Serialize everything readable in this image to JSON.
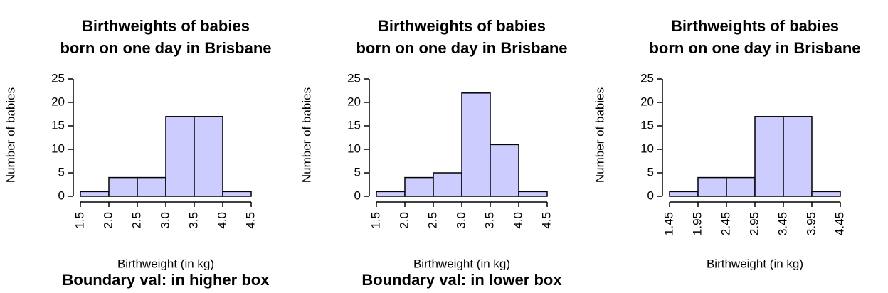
{
  "chart_data": [
    {
      "type": "histogram",
      "title": [
        "Birthweights of babies",
        "born on one day in Brisbane"
      ],
      "xlabel": "Birthweight (in kg)",
      "ylabel": "Number of babies",
      "caption": "Boundary val: in higher box",
      "bins": [
        1.5,
        2.0,
        2.5,
        3.0,
        3.5,
        4.0,
        4.5
      ],
      "values": [
        1,
        4,
        4,
        17,
        17,
        1
      ],
      "color": "#ccccff",
      "xlim": [
        1.5,
        4.5
      ],
      "xticks": [
        1.5,
        {
          "value": 2,
          "label": "2.0"
        },
        2.5,
        {
          "value": 3,
          "label": "3.0"
        },
        3.5,
        {
          "value": 4,
          "label": "4.0"
        },
        4.5
      ],
      "ylim": [
        0,
        25
      ],
      "yticks": [
        0,
        5,
        10,
        15,
        20,
        25
      ]
    },
    {
      "type": "histogram",
      "title": [
        "Birthweights of babies",
        "born on one day in Brisbane"
      ],
      "xlabel": "Birthweight (in kg)",
      "ylabel": "Number of babies",
      "caption": "Boundary val: in lower box",
      "bins": [
        1.5,
        2.0,
        2.5,
        3.0,
        3.5,
        4.0,
        4.5
      ],
      "values": [
        1,
        4,
        5,
        22,
        11,
        1
      ],
      "color": "#ccccff",
      "xlim": [
        1.5,
        4.5
      ],
      "xticks": [
        1.5,
        {
          "value": 2,
          "label": "2.0"
        },
        2.5,
        {
          "value": 3,
          "label": "3.0"
        },
        3.5,
        {
          "value": 4,
          "label": "4.0"
        },
        4.5
      ],
      "ylim": [
        0,
        25
      ],
      "yticks": [
        0,
        5,
        10,
        15,
        20,
        25
      ]
    },
    {
      "type": "histogram",
      "title": [
        "Birthweights of babies",
        "born on one day in Brisbane"
      ],
      "xlabel": "Birthweight (in kg)",
      "ylabel": "Number of babies",
      "bins": [
        1.45,
        1.95,
        2.45,
        2.95,
        3.45,
        3.95,
        4.45
      ],
      "values": [
        1,
        4,
        4,
        17,
        17,
        1
      ],
      "color": "#ccccff",
      "xlim": [
        1.45,
        4.45
      ],
      "xticks": [
        1.45,
        1.95,
        2.45,
        2.95,
        3.45,
        3.95,
        4.45
      ],
      "ylim": [
        0,
        25
      ],
      "yticks": [
        0,
        5,
        10,
        15,
        20,
        25
      ]
    }
  ]
}
